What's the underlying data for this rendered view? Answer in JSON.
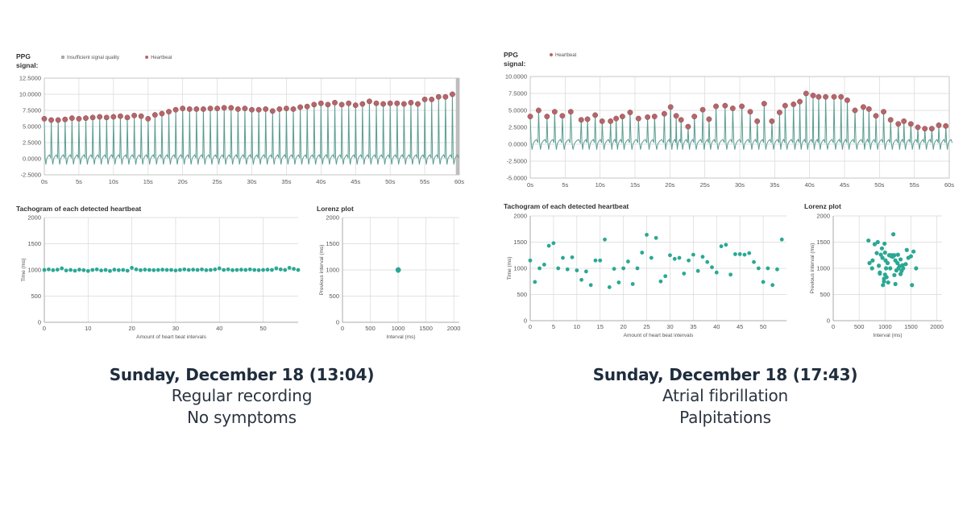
{
  "panels": [
    {
      "caption": {
        "date": "Sunday, December 18 (13:04)",
        "rhythm": "Regular recording",
        "symptoms": "No symptoms"
      }
    },
    {
      "caption": {
        "date": "Sunday, December 18 (17:43)",
        "rhythm": "Atrial fibrillation",
        "symptoms": "Palpitations"
      }
    }
  ],
  "chart_data": [
    {
      "type": "line",
      "title": "PPG signal:",
      "legend": [
        "Insufficient signal quality",
        "Heartbeat"
      ],
      "xlabel": "",
      "ylabel": "",
      "xticks": [
        "0s",
        "5s",
        "10s",
        "15s",
        "20s",
        "25s",
        "30s",
        "35s",
        "40s",
        "45s",
        "50s",
        "55s",
        "60s"
      ],
      "yticks": [
        "-2.5000",
        "0.0000",
        "2.5000",
        "5.0000",
        "7.5000",
        "10.0000",
        "12.5000"
      ],
      "ylim": [
        -2.5,
        12.5
      ],
      "xlim": [
        0,
        60
      ],
      "insufficient_signal_quality": [
        59.5,
        60
      ],
      "beat_count": 60,
      "heartbeat_peaks": {
        "x": [
          0,
          1,
          2,
          3,
          4,
          5,
          6,
          7,
          8,
          9,
          10,
          11,
          12,
          13,
          14,
          15,
          16,
          17,
          18,
          19,
          20,
          21,
          22,
          23,
          24,
          25,
          26,
          27,
          28,
          29,
          30,
          31,
          32,
          33,
          34,
          35,
          36,
          37,
          38,
          39,
          40,
          41,
          42,
          43,
          44,
          45,
          46,
          47,
          48,
          49,
          50,
          51,
          52,
          53,
          54,
          55,
          56,
          57,
          58,
          59
        ],
        "y": [
          6.2,
          6.0,
          6.0,
          6.1,
          6.3,
          6.2,
          6.3,
          6.4,
          6.5,
          6.4,
          6.5,
          6.6,
          6.4,
          6.7,
          6.6,
          6.2,
          6.8,
          7.0,
          7.3,
          7.6,
          7.8,
          7.7,
          7.7,
          7.7,
          7.8,
          7.8,
          7.9,
          7.9,
          7.7,
          7.8,
          7.6,
          7.6,
          7.7,
          7.4,
          7.7,
          7.8,
          7.7,
          8.0,
          8.1,
          8.4,
          8.6,
          8.4,
          8.7,
          8.4,
          8.6,
          8.3,
          8.5,
          8.9,
          8.6,
          8.5,
          8.6,
          8.6,
          8.5,
          8.7,
          8.5,
          9.2,
          9.2,
          9.6,
          9.6,
          10.0
        ]
      }
    },
    {
      "type": "scatter",
      "title": "Tachogram of each detected heartbeat",
      "xlabel": "Amount of heart beat intervals",
      "ylabel": "Time (ms)",
      "xticks": [
        "0",
        "10",
        "20",
        "30",
        "40",
        "50"
      ],
      "yticks": [
        "0",
        "500",
        "1000",
        "1500",
        "2000"
      ],
      "xlim": [
        0,
        58
      ],
      "ylim": [
        0,
        2000
      ],
      "x": [
        0,
        1,
        2,
        3,
        4,
        5,
        6,
        7,
        8,
        9,
        10,
        11,
        12,
        13,
        14,
        15,
        16,
        17,
        18,
        19,
        20,
        21,
        22,
        23,
        24,
        25,
        26,
        27,
        28,
        29,
        30,
        31,
        32,
        33,
        34,
        35,
        36,
        37,
        38,
        39,
        40,
        41,
        42,
        43,
        44,
        45,
        46,
        47,
        48,
        49,
        50,
        51,
        52,
        53,
        54,
        55,
        56,
        57,
        58
      ],
      "y": [
        1000,
        1010,
        995,
        1005,
        1030,
        990,
        1000,
        985,
        1005,
        995,
        980,
        1000,
        1010,
        990,
        1000,
        980,
        1005,
        995,
        1000,
        985,
        1040,
        1010,
        995,
        1005,
        1000,
        995,
        1000,
        1005,
        1000,
        1000,
        990,
        1000,
        1010,
        1000,
        1005,
        1000,
        1010,
        995,
        1000,
        1010,
        1030,
        1000,
        1010,
        995,
        1000,
        1005,
        1000,
        1010,
        1000,
        995,
        1000,
        1005,
        1000,
        1030,
        1010,
        1000,
        1040,
        1020,
        1000
      ]
    },
    {
      "type": "scatter",
      "title": "Lorenz plot",
      "xlabel": "Interval (ms)",
      "ylabel": "Previous interval (ms)",
      "xticks": [
        "0",
        "500",
        "1000",
        "1500",
        "2000"
      ],
      "yticks": [
        "0",
        "500",
        "1000",
        "1500",
        "2000"
      ],
      "xlim": [
        0,
        2100
      ],
      "ylim": [
        0,
        2000
      ],
      "x": [
        990,
        1000,
        1005,
        1010,
        995,
        1000,
        1008,
        992,
        1003,
        1012,
        996,
        1001
      ],
      "y": [
        1000,
        1010,
        990,
        1005,
        1000,
        995,
        1010,
        1000,
        1012,
        998,
        1003,
        985
      ]
    },
    {
      "type": "line",
      "title": "PPG signal:",
      "legend": [
        "Heartbeat"
      ],
      "xlabel": "",
      "ylabel": "",
      "xticks": [
        "0s",
        "5s",
        "10s",
        "15s",
        "20s",
        "25s",
        "30s",
        "35s",
        "40s",
        "45s",
        "50s",
        "55s",
        "60s"
      ],
      "yticks": [
        "-5.0000",
        "-2.5000",
        "0.0000",
        "2.5000",
        "5.0000",
        "7.5000",
        "10.0000"
      ],
      "xlim": [
        0,
        60
      ],
      "ylim": [
        -5,
        10
      ],
      "heartbeat_peaks": {
        "x": [
          0,
          1.2,
          2.4,
          3.5,
          4.6,
          5.8,
          7.3,
          8.2,
          9.3,
          10.3,
          11.5,
          12.3,
          13.2,
          14.3,
          15.5,
          16.8,
          17.8,
          19.2,
          20.1,
          20.9,
          21.6,
          22.6,
          23.5,
          24.7,
          25.6,
          26.6,
          27.9,
          29.0,
          30.3,
          31.5,
          32.5,
          33.5,
          34.6,
          35.7,
          36.5,
          37.7,
          38.6,
          39.5,
          40.5,
          41.3,
          42.3,
          43.5,
          44.5,
          45.4,
          46.5,
          47.7,
          48.5,
          49.5,
          50.6,
          51.6,
          52.7,
          53.5,
          54.5,
          55.5,
          56.5,
          57.5,
          58.5,
          59.5
        ],
        "y": [
          4.1,
          5.0,
          4.1,
          4.8,
          4.2,
          4.8,
          3.6,
          3.7,
          4.3,
          3.4,
          3.4,
          3.8,
          4.1,
          4.7,
          3.8,
          4.0,
          4.1,
          4.5,
          5.5,
          4.2,
          3.6,
          2.6,
          4.1,
          5.1,
          3.7,
          5.6,
          5.7,
          5.3,
          5.6,
          4.8,
          3.4,
          6.0,
          3.4,
          4.7,
          5.7,
          5.9,
          6.3,
          7.5,
          7.2,
          7.0,
          7.0,
          7.0,
          7.0,
          6.5,
          5.0,
          5.5,
          5.2,
          4.2,
          4.8,
          3.6,
          3.0,
          3.4,
          3.0,
          2.5,
          2.3,
          2.3,
          2.8,
          2.7
        ]
      }
    },
    {
      "type": "scatter",
      "title": "Tachogram of each detected heartbeat",
      "xlabel": "Amount of heart beat intervals",
      "ylabel": "Time (ms)",
      "xticks": [
        "0",
        "5",
        "10",
        "15",
        "20",
        "25",
        "30",
        "35",
        "40",
        "45",
        "50"
      ],
      "yticks": [
        "0",
        "500",
        "1000",
        "1500",
        "2000"
      ],
      "xlim": [
        0,
        55
      ],
      "ylim": [
        0,
        2000
      ],
      "x": [
        0,
        1,
        2,
        3,
        4,
        5,
        6,
        7,
        8,
        9,
        10,
        11,
        12,
        13,
        14,
        15,
        16,
        17,
        18,
        19,
        20,
        21,
        22,
        23,
        24,
        25,
        26,
        27,
        28,
        29,
        30,
        31,
        32,
        33,
        34,
        35,
        36,
        37,
        38,
        39,
        40,
        41,
        42,
        43,
        44,
        45,
        46,
        47,
        48,
        49,
        50,
        51,
        52,
        53,
        54
      ],
      "y": [
        1150,
        740,
        1000,
        1070,
        1430,
        1480,
        1000,
        1200,
        980,
        1210,
        960,
        780,
        940,
        680,
        1150,
        1150,
        1550,
        640,
        990,
        730,
        1000,
        1130,
        700,
        1000,
        1300,
        1640,
        1200,
        1580,
        750,
        850,
        1250,
        1180,
        1200,
        900,
        1150,
        1260,
        950,
        1220,
        1120,
        1020,
        920,
        1420,
        1450,
        880,
        1270,
        1270,
        1260,
        1290,
        1120,
        1000,
        740,
        1000,
        680,
        980,
        1550
      ]
    },
    {
      "type": "scatter",
      "title": "Lorenz plot",
      "xlabel": "Interval (ms)",
      "ylabel": "Previous interval (ms)",
      "xticks": [
        "0",
        "500",
        "1000",
        "1500",
        "2000"
      ],
      "yticks": [
        "0",
        "500",
        "1000",
        "1500",
        "2000"
      ],
      "xlim": [
        0,
        2100
      ],
      "ylim": [
        0,
        2000
      ],
      "x": [
        680,
        750,
        800,
        880,
        900,
        920,
        950,
        980,
        1000,
        1010,
        1050,
        1100,
        1150,
        1200,
        1250,
        1300,
        1350,
        1400,
        1450,
        1500,
        1550,
        1600,
        700,
        860,
        940,
        990,
        1020,
        1080,
        1120,
        1180,
        1220,
        1280,
        1320,
        760,
        840,
        960,
        1030,
        1160,
        1240,
        1420,
        1520,
        900,
        980,
        1060,
        1140,
        1200,
        1260,
        1340,
        1000,
        1100,
        1180,
        1300
      ],
      "y": [
        1530,
        1000,
        1460,
        1050,
        900,
        1260,
        1200,
        750,
        1300,
        1150,
        1100,
        1000,
        1220,
        700,
        1260,
        1170,
        1000,
        1080,
        1200,
        1230,
        1320,
        1000,
        1100,
        1500,
        1380,
        1470,
        1000,
        1250,
        1230,
        870,
        960,
        1040,
        950,
        1150,
        1290,
        680,
        830,
        1650,
        1100,
        1350,
        680,
        920,
        800,
        730,
        1250,
        1150,
        1000,
        1060,
        880,
        1250,
        1250,
        890
      ]
    }
  ]
}
